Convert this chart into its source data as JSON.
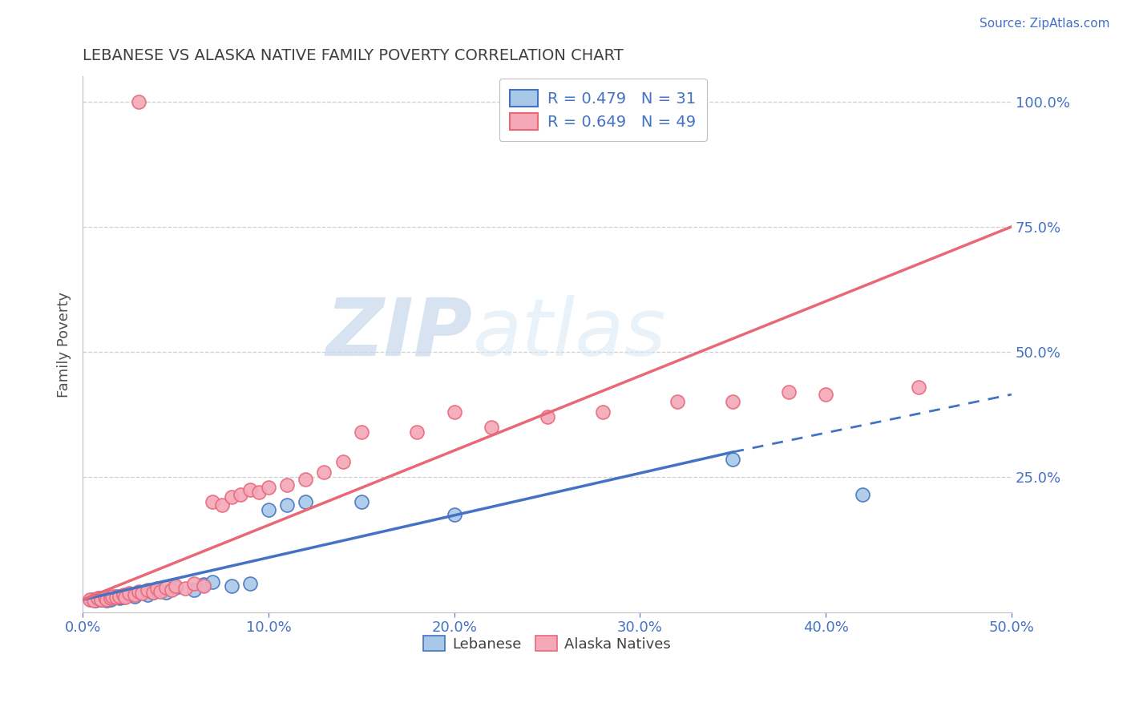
{
  "title": "LEBANESE VS ALASKA NATIVE FAMILY POVERTY CORRELATION CHART",
  "source_text": "Source: ZipAtlas.com",
  "ylabel": "Family Poverty",
  "xlim": [
    0.0,
    0.5
  ],
  "ylim": [
    -0.02,
    1.05
  ],
  "xtick_labels": [
    "0.0%",
    "10.0%",
    "20.0%",
    "30.0%",
    "40.0%",
    "50.0%"
  ],
  "xtick_vals": [
    0.0,
    0.1,
    0.2,
    0.3,
    0.4,
    0.5
  ],
  "ytick_labels_right": [
    "25.0%",
    "50.0%",
    "75.0%",
    "100.0%"
  ],
  "ytick_vals_right": [
    0.25,
    0.5,
    0.75,
    1.0
  ],
  "grid_yticks": [
    0.25,
    0.5,
    0.75,
    1.0
  ],
  "lebanese_color": "#A8C8E8",
  "alaska_color": "#F4A8B8",
  "lebanese_line_color": "#4472C4",
  "alaska_line_color": "#E86878",
  "R_lebanese": 0.479,
  "N_lebanese": 31,
  "R_alaska": 0.649,
  "N_alaska": 49,
  "background_color": "#FFFFFF",
  "title_color": "#404040",
  "watermark_zip": "ZIP",
  "watermark_atlas": "atlas",
  "leb_line_x0": 0.0,
  "leb_line_y0": 0.005,
  "leb_line_x1": 0.35,
  "leb_line_y1": 0.3,
  "leb_line_dash_x1": 0.5,
  "leb_line_dash_y1": 0.415,
  "ala_line_x0": 0.0,
  "ala_line_y0": 0.005,
  "ala_line_x1": 0.5,
  "ala_line_y1": 0.75,
  "lebanese_points": [
    [
      0.005,
      0.005
    ],
    [
      0.007,
      0.003
    ],
    [
      0.009,
      0.008
    ],
    [
      0.01,
      0.005
    ],
    [
      0.012,
      0.007
    ],
    [
      0.013,
      0.003
    ],
    [
      0.015,
      0.005
    ],
    [
      0.015,
      0.01
    ],
    [
      0.018,
      0.012
    ],
    [
      0.02,
      0.008
    ],
    [
      0.022,
      0.01
    ],
    [
      0.025,
      0.015
    ],
    [
      0.028,
      0.012
    ],
    [
      0.03,
      0.02
    ],
    [
      0.035,
      0.015
    ],
    [
      0.038,
      0.02
    ],
    [
      0.04,
      0.025
    ],
    [
      0.045,
      0.02
    ],
    [
      0.05,
      0.03
    ],
    [
      0.06,
      0.025
    ],
    [
      0.065,
      0.035
    ],
    [
      0.07,
      0.04
    ],
    [
      0.08,
      0.032
    ],
    [
      0.09,
      0.038
    ],
    [
      0.1,
      0.185
    ],
    [
      0.11,
      0.195
    ],
    [
      0.12,
      0.2
    ],
    [
      0.15,
      0.2
    ],
    [
      0.2,
      0.175
    ],
    [
      0.35,
      0.285
    ],
    [
      0.42,
      0.215
    ]
  ],
  "alaska_points": [
    [
      0.004,
      0.005
    ],
    [
      0.006,
      0.003
    ],
    [
      0.008,
      0.008
    ],
    [
      0.01,
      0.006
    ],
    [
      0.012,
      0.01
    ],
    [
      0.013,
      0.006
    ],
    [
      0.015,
      0.008
    ],
    [
      0.016,
      0.012
    ],
    [
      0.018,
      0.01
    ],
    [
      0.02,
      0.012
    ],
    [
      0.022,
      0.015
    ],
    [
      0.023,
      0.01
    ],
    [
      0.025,
      0.018
    ],
    [
      0.028,
      0.015
    ],
    [
      0.03,
      0.022
    ],
    [
      0.032,
      0.018
    ],
    [
      0.035,
      0.025
    ],
    [
      0.038,
      0.02
    ],
    [
      0.04,
      0.028
    ],
    [
      0.042,
      0.022
    ],
    [
      0.045,
      0.03
    ],
    [
      0.048,
      0.025
    ],
    [
      0.05,
      0.032
    ],
    [
      0.055,
      0.028
    ],
    [
      0.06,
      0.038
    ],
    [
      0.065,
      0.032
    ],
    [
      0.07,
      0.2
    ],
    [
      0.075,
      0.195
    ],
    [
      0.08,
      0.21
    ],
    [
      0.085,
      0.215
    ],
    [
      0.09,
      0.225
    ],
    [
      0.095,
      0.22
    ],
    [
      0.1,
      0.23
    ],
    [
      0.11,
      0.235
    ],
    [
      0.12,
      0.245
    ],
    [
      0.13,
      0.26
    ],
    [
      0.14,
      0.28
    ],
    [
      0.15,
      0.34
    ],
    [
      0.18,
      0.34
    ],
    [
      0.2,
      0.38
    ],
    [
      0.22,
      0.35
    ],
    [
      0.25,
      0.37
    ],
    [
      0.28,
      0.38
    ],
    [
      0.32,
      0.4
    ],
    [
      0.35,
      0.4
    ],
    [
      0.38,
      0.42
    ],
    [
      0.4,
      0.415
    ],
    [
      0.45,
      0.43
    ],
    [
      0.03,
      1.0
    ]
  ]
}
